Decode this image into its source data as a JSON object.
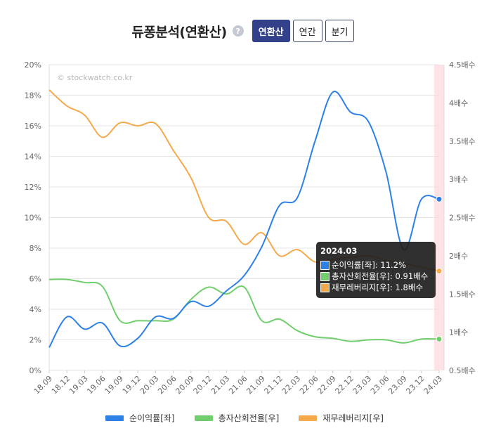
{
  "header": {
    "title": "듀퐁분석(연환산)",
    "help_symbol": "?",
    "tabs": [
      {
        "label": "연환산",
        "active": true
      },
      {
        "label": "연간",
        "active": false
      },
      {
        "label": "분기",
        "active": false
      }
    ]
  },
  "watermark": "© stockwatch.co.kr",
  "tooltip": {
    "title": "2024.03",
    "rows": [
      {
        "text": "순이익률[좌]: 11.2%",
        "color": "#2d80e6"
      },
      {
        "text": "총자산회전율[우]: 0.91배수",
        "color": "#70cf6c"
      },
      {
        "text": "재무레버리지[우]: 1.8배수",
        "color": "#f5a94b"
      }
    ]
  },
  "chart_data": {
    "type": "line",
    "categories": [
      "18.09",
      "18.12",
      "19.03",
      "19.06",
      "19.09",
      "19.12",
      "20.03",
      "20.06",
      "20.09",
      "20.12",
      "21.03",
      "21.06",
      "21.09",
      "21.12",
      "22.03",
      "22.06",
      "22.09",
      "22.12",
      "23.03",
      "23.06",
      "23.09",
      "23.12",
      "24.03"
    ],
    "y_left": {
      "ticks": [
        "0%",
        "2%",
        "4%",
        "6%",
        "8%",
        "10%",
        "12%",
        "14%",
        "16%",
        "18%",
        "20%"
      ],
      "min": 0,
      "max": 20
    },
    "y_right": {
      "ticks": [
        "0.5배수",
        "1배수",
        "1.5배수",
        "2배수",
        "2.5배수",
        "3배수",
        "3.5배수",
        "4배수",
        "4.5배수"
      ],
      "min": 0.5,
      "max": 4.5
    },
    "grid": true,
    "legend_position": "bottom",
    "highlight_category": "24.03",
    "series": [
      {
        "name": "순이익률[좌]",
        "axis": "left",
        "color": "#2d80e6",
        "values": [
          1.5,
          3.5,
          2.7,
          3.1,
          1.6,
          2.1,
          3.5,
          3.4,
          4.5,
          4.2,
          5.2,
          6.2,
          8.1,
          10.8,
          11.3,
          15.0,
          18.2,
          16.9,
          16.3,
          13.0,
          7.9,
          11.2,
          11.2
        ]
      },
      {
        "name": "총자산회전율[우]",
        "axis": "right",
        "color": "#70cf6c",
        "values": [
          1.69,
          1.69,
          1.65,
          1.6,
          1.15,
          1.15,
          1.15,
          1.17,
          1.43,
          1.59,
          1.5,
          1.59,
          1.15,
          1.17,
          1.02,
          0.94,
          0.92,
          0.88,
          0.9,
          0.9,
          0.86,
          0.91,
          0.91
        ]
      },
      {
        "name": "재무레버리지[우]",
        "axis": "right",
        "color": "#f5a94b",
        "values": [
          4.17,
          3.96,
          3.84,
          3.55,
          3.74,
          3.7,
          3.73,
          3.38,
          3.02,
          2.5,
          2.45,
          2.15,
          2.3,
          2.0,
          2.08,
          1.92,
          1.95,
          1.98,
          2.0,
          1.94,
          1.9,
          1.85,
          1.8
        ]
      }
    ]
  }
}
